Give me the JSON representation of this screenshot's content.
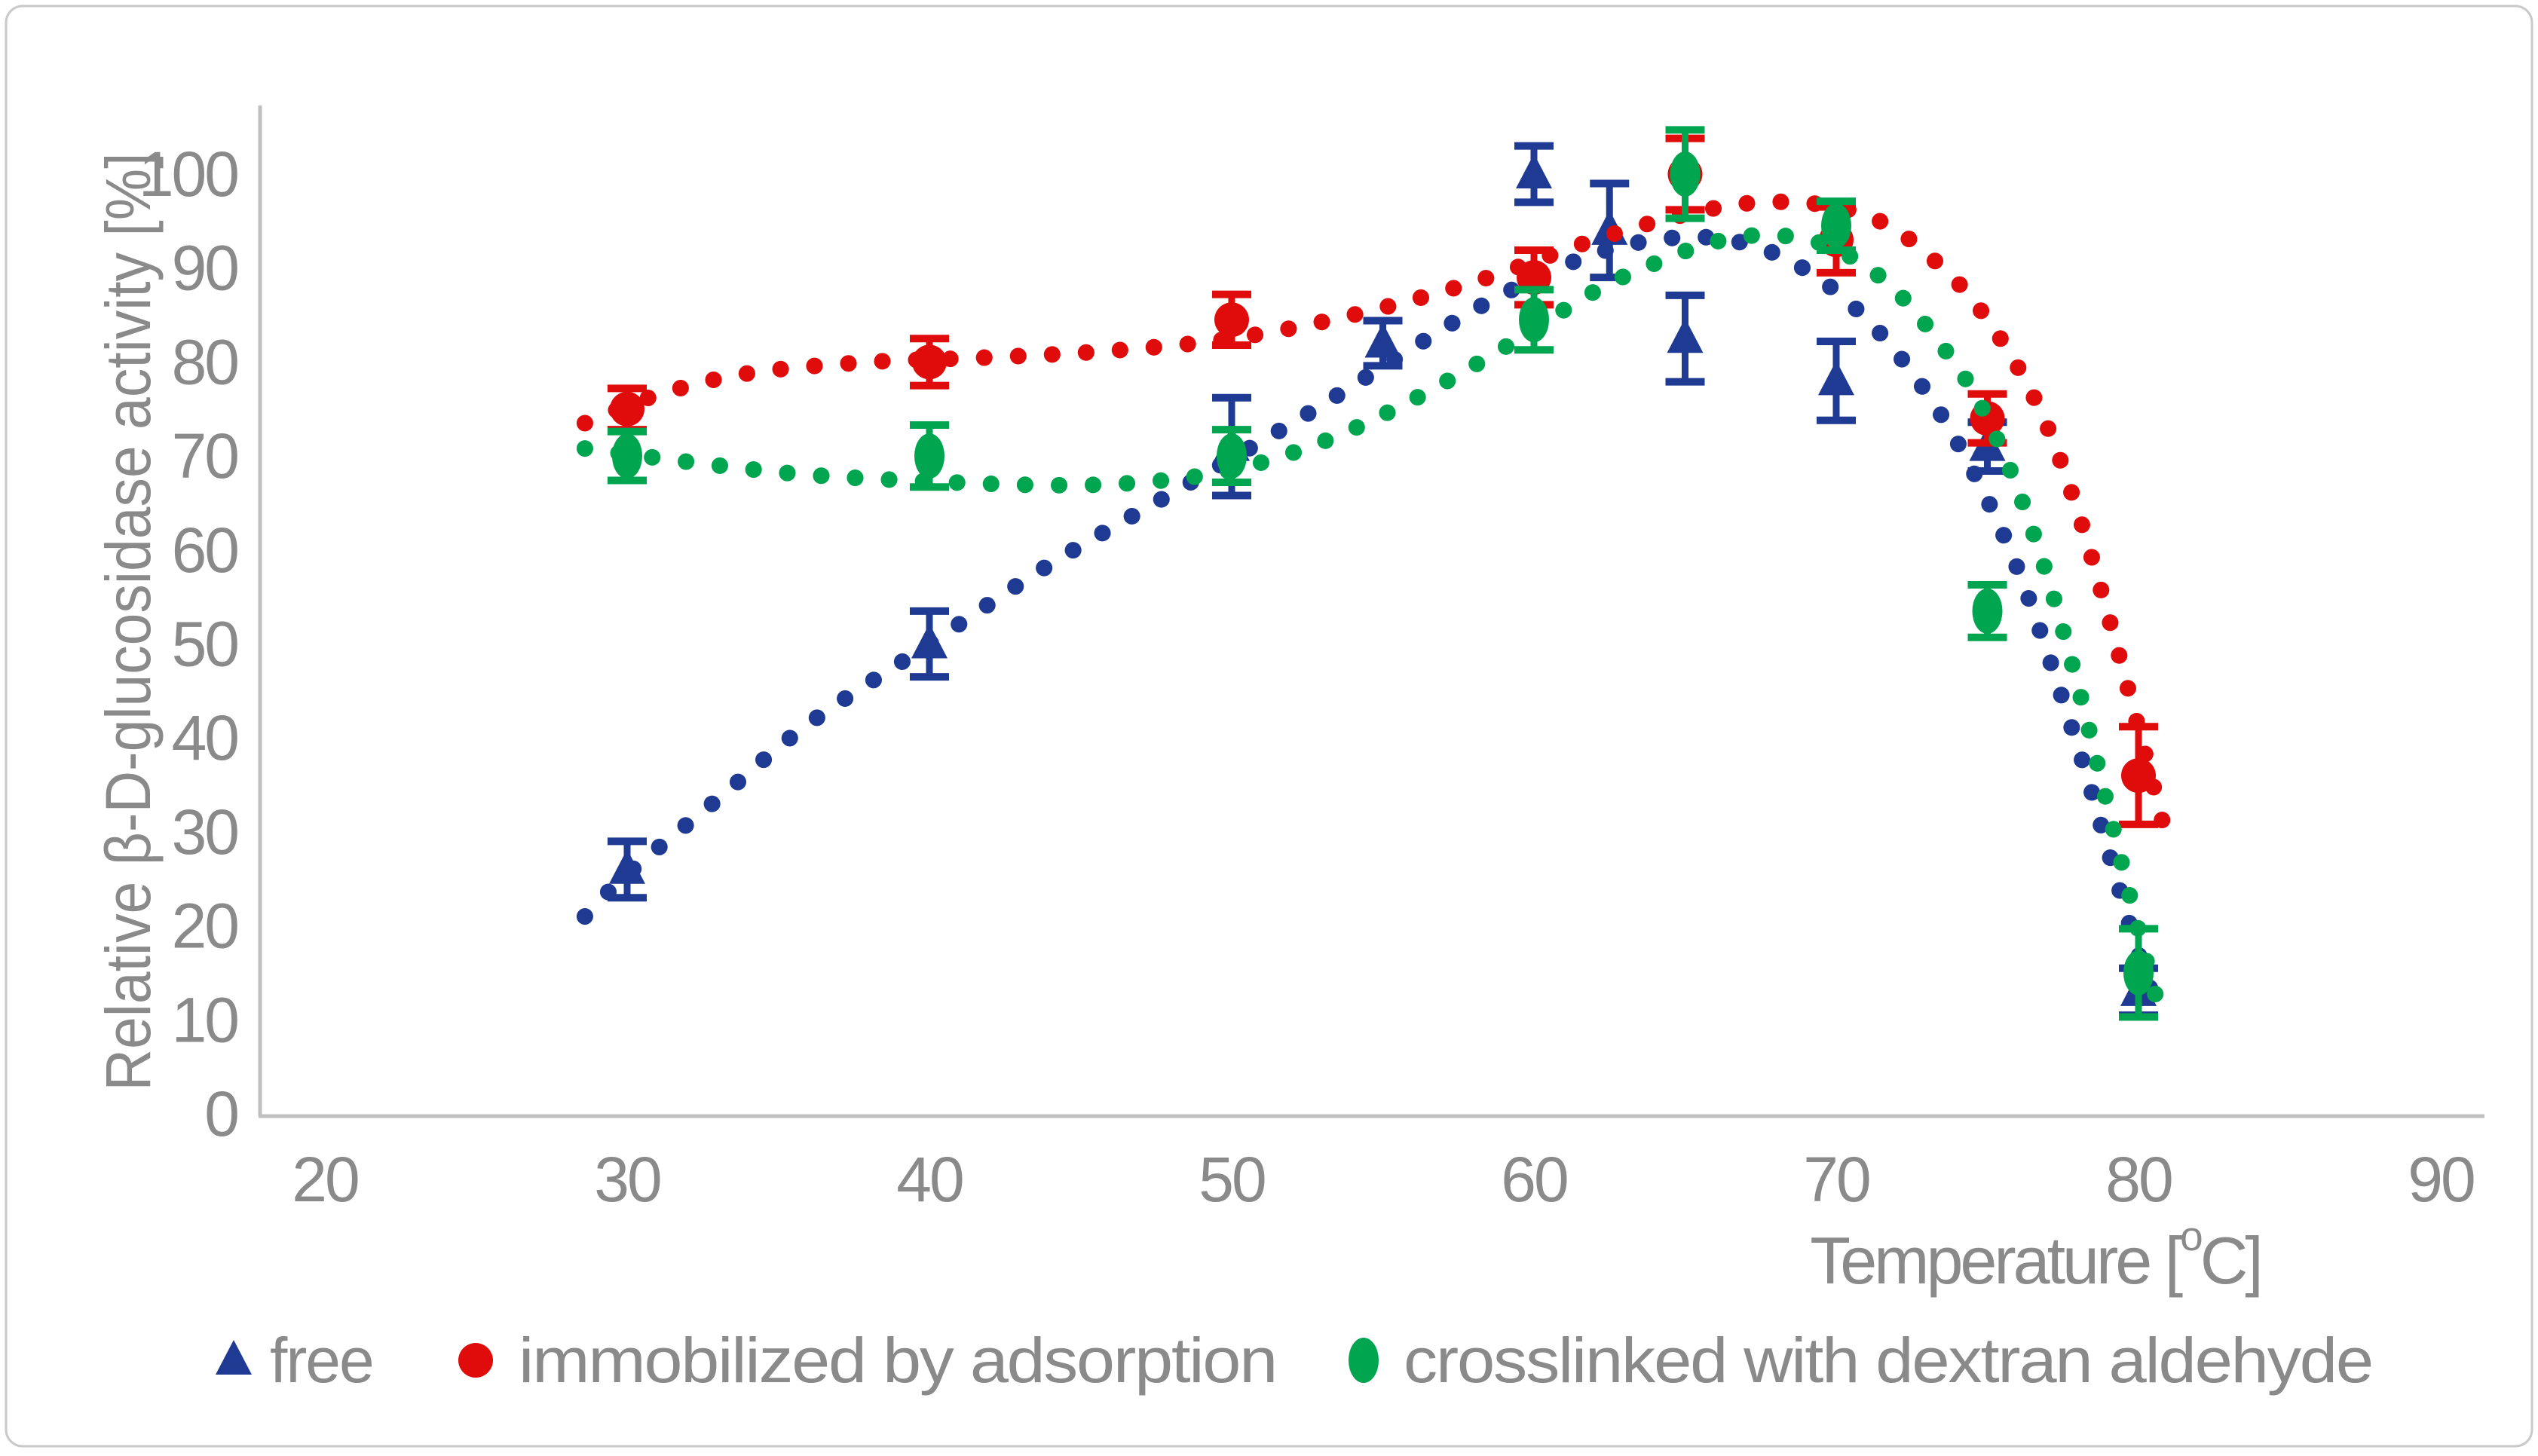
{
  "figure": {
    "background": "#ffffff",
    "border_color": "#c9c9c9",
    "axis_color": "#bfbfbf",
    "text_color": "#8a8a8a"
  },
  "chart_data": {
    "type": "scatter",
    "title": "",
    "xlabel": "Temperature [°C]",
    "xlabel_parts": {
      "prefix": "Temperature [",
      "superscript": "o",
      "suffix": "C]"
    },
    "ylabel": "Relative β-D-glucosidase activity [%]",
    "xlim": [
      20,
      90
    ],
    "ylim": [
      0,
      100
    ],
    "x_ticks": [
      20,
      30,
      40,
      50,
      60,
      70,
      80,
      90
    ],
    "y_ticks": [
      0,
      10,
      20,
      30,
      40,
      50,
      60,
      70,
      80,
      90,
      100
    ],
    "grid": false,
    "legend_position": "bottom",
    "series": [
      {
        "name": "free",
        "color": "#1f3a93",
        "marker": "triangle",
        "line_style": "dotted-trend",
        "points": [
          {
            "x": 30,
            "y": 26,
            "err": 3.0
          },
          {
            "x": 40,
            "y": 50,
            "err": 3.5
          },
          {
            "x": 50,
            "y": 71,
            "err": 5.2
          },
          {
            "x": 55,
            "y": 82,
            "err": 2.4
          },
          {
            "x": 60,
            "y": 100,
            "err": 3.0
          },
          {
            "x": 62.5,
            "y": 94,
            "err": 5.0
          },
          {
            "x": 65,
            "y": 82.5,
            "err": 4.6
          },
          {
            "x": 70,
            "y": 78,
            "err": 4.2
          },
          {
            "x": 75,
            "y": 71,
            "err": 2.6
          },
          {
            "x": 80,
            "y": 13,
            "err": 2.5
          }
        ],
        "trend": [
          [
            28.6,
            21
          ],
          [
            30,
            25.5
          ],
          [
            33,
            33.5
          ],
          [
            36,
            41.5
          ],
          [
            40,
            50
          ],
          [
            44,
            58.5
          ],
          [
            48,
            66
          ],
          [
            52,
            73.5
          ],
          [
            55,
            79.5
          ],
          [
            58,
            85.5
          ],
          [
            60,
            88.8
          ],
          [
            62,
            91.5
          ],
          [
            64,
            93
          ],
          [
            66,
            93.2
          ],
          [
            68,
            91.5
          ],
          [
            70,
            87.5
          ],
          [
            72,
            81
          ],
          [
            74,
            71.5
          ],
          [
            76,
            58
          ],
          [
            78,
            39
          ],
          [
            79,
            28
          ],
          [
            80,
            17
          ],
          [
            80.7,
            10.5
          ]
        ]
      },
      {
        "name": "immobilized by adsorption",
        "color": "#e00c0c",
        "marker": "circle",
        "line_style": "dotted-trend",
        "points": [
          {
            "x": 30,
            "y": 75,
            "err": 2.2
          },
          {
            "x": 40,
            "y": 80,
            "err": 2.5
          },
          {
            "x": 50,
            "y": 84.5,
            "err": 2.7
          },
          {
            "x": 60,
            "y": 89,
            "err": 2.9
          },
          {
            "x": 65,
            "y": 100,
            "err": 3.8
          },
          {
            "x": 70,
            "y": 93,
            "err": 3.5
          },
          {
            "x": 75,
            "y": 74,
            "err": 2.6
          },
          {
            "x": 80,
            "y": 36,
            "err": 5.2
          }
        ],
        "trend": [
          [
            28.6,
            73.5
          ],
          [
            31,
            76.5
          ],
          [
            34,
            78.8
          ],
          [
            38,
            80
          ],
          [
            42,
            80.5
          ],
          [
            46,
            81.2
          ],
          [
            50,
            82.5
          ],
          [
            54,
            85
          ],
          [
            58,
            88.5
          ],
          [
            62,
            93
          ],
          [
            65,
            95.7
          ],
          [
            67.5,
            97
          ],
          [
            70,
            96.5
          ],
          [
            72,
            94
          ],
          [
            74,
            88.5
          ],
          [
            75,
            84.5
          ],
          [
            76,
            79.5
          ],
          [
            77,
            73
          ],
          [
            78,
            64
          ],
          [
            79,
            53
          ],
          [
            80,
            41
          ],
          [
            81,
            28.5
          ]
        ]
      },
      {
        "name": "crosslinked with dextran aldehyde",
        "color": "#00a550",
        "marker": "diamond",
        "line_style": "dotted-trend",
        "points": [
          {
            "x": 30,
            "y": 70,
            "err": 2.6
          },
          {
            "x": 40,
            "y": 70,
            "err": 3.3
          },
          {
            "x": 50,
            "y": 70,
            "err": 2.8
          },
          {
            "x": 60,
            "y": 84.5,
            "err": 3.2
          },
          {
            "x": 65,
            "y": 100,
            "err": 4.7
          },
          {
            "x": 70,
            "y": 94.5,
            "err": 2.6
          },
          {
            "x": 75,
            "y": 53.5,
            "err": 2.8
          },
          {
            "x": 80,
            "y": 15,
            "err": 4.7
          }
        ],
        "trend": [
          [
            28.6,
            70.8
          ],
          [
            30,
            70.2
          ],
          [
            33,
            69
          ],
          [
            36,
            68
          ],
          [
            40,
            67.3
          ],
          [
            44,
            66.9
          ],
          [
            47,
            67.2
          ],
          [
            50,
            68.5
          ],
          [
            53,
            71.5
          ],
          [
            56,
            76
          ],
          [
            59,
            81.5
          ],
          [
            62,
            87.5
          ],
          [
            64,
            90.5
          ],
          [
            66,
            92.8
          ],
          [
            68,
            93.5
          ],
          [
            70,
            92
          ],
          [
            72,
            87.5
          ],
          [
            74,
            79.5
          ],
          [
            75,
            74
          ],
          [
            76,
            66.5
          ],
          [
            77,
            57
          ],
          [
            78,
            45.5
          ],
          [
            79,
            32.5
          ],
          [
            80,
            19.5
          ],
          [
            80.7,
            11
          ]
        ]
      }
    ]
  },
  "legend": {
    "items": [
      {
        "label": "free"
      },
      {
        "label": "immobilized by adsorption"
      },
      {
        "label": "crosslinked with dextran aldehyde"
      }
    ]
  }
}
